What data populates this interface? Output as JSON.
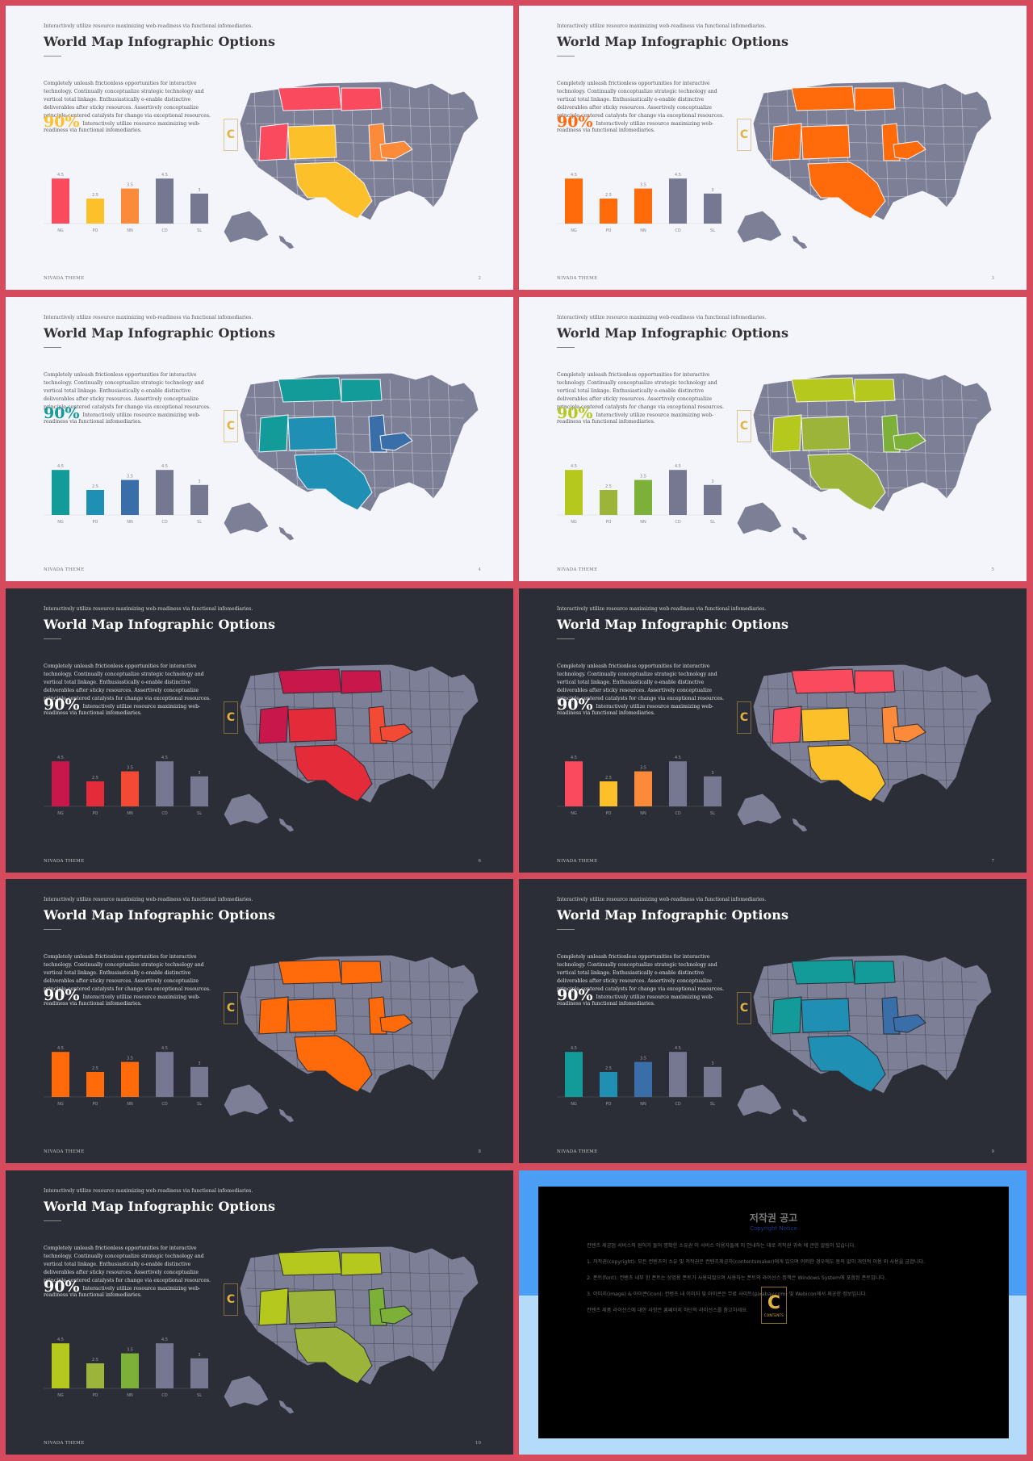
{
  "common": {
    "top_text": "Interactively utilize resource maximizing web-readiness via functional infomediaries.",
    "title": "World Map Infographic Options",
    "paragraph": "Completely unleash frictionless opportunities for interactive technology. Continually conceptualize strategic technology and vertical total linkage. Enthusiastically e-enable distinctive deliverables after sticky resources. Assertively conceptualize principle-centered catalysts for change via exceptional resources.",
    "big_value": "90%",
    "big_text": "Interactively utilize resource maximizing web-readiness via functional infomediaries.",
    "footer": "NIVADA THEME"
  },
  "chart_data": [
    {
      "type": "bar",
      "categories": [
        "NG",
        "PO",
        "NN",
        "CD",
        "SL"
      ],
      "values": [
        4.5,
        2.5,
        3.5,
        4.5,
        3
      ],
      "labels": [
        "4.5",
        "2.5",
        "3.5",
        "4.5",
        "3"
      ],
      "ylim": [
        0,
        5
      ]
    },
    {
      "type": "bar",
      "categories": [
        "NG",
        "PO",
        "NN",
        "CD",
        "SL"
      ],
      "values": [
        4.5,
        2.5,
        3.5,
        4.5,
        3
      ],
      "labels": [
        "4.5",
        "2.5",
        "3.5",
        "4.5",
        "3"
      ],
      "ylim": [
        0,
        5
      ]
    },
    {
      "type": "bar",
      "categories": [
        "NG",
        "PO",
        "NN",
        "CD",
        "SL"
      ],
      "values": [
        4.5,
        2.5,
        3.5,
        4.5,
        3
      ],
      "labels": [
        "4.5",
        "2.5",
        "3.5",
        "4.5",
        "3"
      ],
      "ylim": [
        0,
        5
      ]
    },
    {
      "type": "bar",
      "categories": [
        "NG",
        "PO",
        "NN",
        "CD",
        "SL"
      ],
      "values": [
        4.5,
        2.5,
        3.5,
        4.5,
        3
      ],
      "labels": [
        "4.5",
        "2.5",
        "3.5",
        "4.5",
        "3"
      ],
      "ylim": [
        0,
        5
      ]
    },
    {
      "type": "bar",
      "categories": [
        "NG",
        "PO",
        "NN",
        "CD",
        "SL"
      ],
      "values": [
        4.5,
        2.5,
        3.5,
        4.5,
        3
      ],
      "labels": [
        "4.5",
        "2.5",
        "3.5",
        "4.5",
        "3"
      ],
      "ylim": [
        0,
        5
      ]
    },
    {
      "type": "bar",
      "categories": [
        "NG",
        "PO",
        "NN",
        "CD",
        "SL"
      ],
      "values": [
        4.5,
        2.5,
        3.5,
        4.5,
        3
      ],
      "labels": [
        "4.5",
        "2.5",
        "3.5",
        "4.5",
        "3"
      ],
      "ylim": [
        0,
        5
      ]
    },
    {
      "type": "bar",
      "categories": [
        "NG",
        "PO",
        "NN",
        "CD",
        "SL"
      ],
      "values": [
        4.5,
        2.5,
        3.5,
        4.5,
        3
      ],
      "labels": [
        "4.5",
        "2.5",
        "3.5",
        "4.5",
        "3"
      ],
      "ylim": [
        0,
        5
      ]
    },
    {
      "type": "bar",
      "categories": [
        "NG",
        "PO",
        "NN",
        "CD",
        "SL"
      ],
      "values": [
        4.5,
        2.5,
        3.5,
        4.5,
        3
      ],
      "labels": [
        "4.5",
        "2.5",
        "3.5",
        "4.5",
        "3"
      ],
      "ylim": [
        0,
        5
      ]
    },
    {
      "type": "bar",
      "categories": [
        "NG",
        "PO",
        "NN",
        "CD",
        "SL"
      ],
      "values": [
        4.5,
        2.5,
        3.5,
        4.5,
        3
      ],
      "labels": [
        "4.5",
        "2.5",
        "3.5",
        "4.5",
        "3"
      ],
      "ylim": [
        0,
        5
      ]
    }
  ],
  "slides": [
    {
      "theme": "light",
      "page": "2",
      "colors": [
        "#fa4a5e",
        "#fcc12a",
        "#fb8b3a",
        "#767892",
        "#767892"
      ],
      "pct_color": "#fcc12a"
    },
    {
      "theme": "light",
      "page": "3",
      "colors": [
        "#ff6a0a",
        "#ff6a0a",
        "#ff6a0a",
        "#767892",
        "#767892"
      ],
      "pct_color": "#ff6a0a"
    },
    {
      "theme": "light",
      "page": "4",
      "colors": [
        "#139b9a",
        "#1f8fb4",
        "#3a6ea8",
        "#767892",
        "#767892"
      ],
      "pct_color": "#139b9a"
    },
    {
      "theme": "light",
      "page": "5",
      "colors": [
        "#b4c81e",
        "#9cb43a",
        "#7cb038",
        "#767892",
        "#767892"
      ],
      "pct_color": "#b4c81e"
    },
    {
      "theme": "dark",
      "page": "6",
      "colors": [
        "#c8174a",
        "#e42b3a",
        "#f34a36",
        "#767892",
        "#767892"
      ],
      "pct_color": "#ffffff"
    },
    {
      "theme": "dark",
      "page": "7",
      "colors": [
        "#fa4a5e",
        "#fcc12a",
        "#fb8b3a",
        "#767892",
        "#767892"
      ],
      "pct_color": "#ffffff"
    },
    {
      "theme": "dark",
      "page": "8",
      "colors": [
        "#ff6a0a",
        "#ff6a0a",
        "#ff6a0a",
        "#767892",
        "#767892"
      ],
      "pct_color": "#ffffff"
    },
    {
      "theme": "dark",
      "page": "9",
      "colors": [
        "#139b9a",
        "#1f8fb4",
        "#3a6ea8",
        "#767892",
        "#767892"
      ],
      "pct_color": "#ffffff"
    },
    {
      "theme": "dark",
      "page": "10",
      "colors": [
        "#b4c81e",
        "#9cb43a",
        "#7cb038",
        "#767892",
        "#767892"
      ],
      "pct_color": "#ffffff"
    }
  ],
  "notice": {
    "title": "저작권 공고",
    "subtitle": "Copyright Notice",
    "paragraphs": [
      "컨텐츠 제공업 서비스의 원어가 들어 명확한 소유권 이 서비스 이용자들께 이 안내하는 대로 저작권 귀속 에 관한 알림이 있습니다.",
      "1. 저작권(copyright): 모든 컨텐츠의 소유 및 저작권은 컨텐츠제공자(contentsmaker)에게 있으며 어떠한 경우에도 동의 없이 개인적 이용 외 사용을 금합니다.",
      "2. 폰트(font): 컨텐츠 내부 한 폰트는 상업용 폰트가 사용되었으며 사용하는 폰트의 라이선스 정책은 Windows System에 포함된 폰트입니다.",
      "3. 이미지(image) & 아이콘(icon): 컨텐츠 내 이미지 및 아이콘은 무료 사이트(pixabay.com) 및 Webicon에서 제공한 정보입니다.",
      "컨텐츠 제품 라이선스에 대한 사항은 홈페이지 하단의 라이선스를 참고하세요."
    ],
    "logo_letter": "C",
    "logo_text": "CONTENTS"
  }
}
